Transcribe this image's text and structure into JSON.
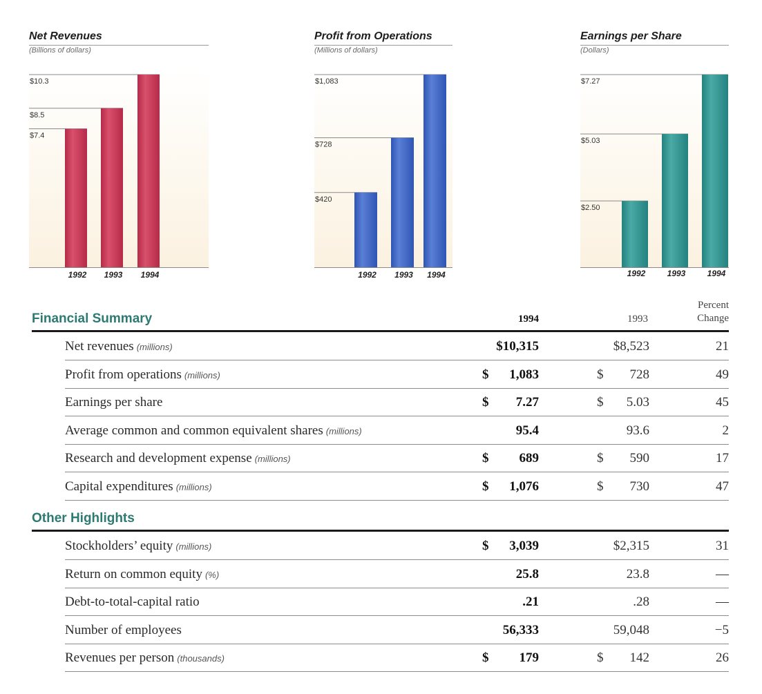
{
  "chart_data": [
    {
      "type": "bar",
      "title": "Net Revenues",
      "subtitle": "(Billions of dollars)",
      "categories": [
        "1992",
        "1993",
        "1994"
      ],
      "values": [
        7.4,
        8.5,
        10.3
      ],
      "value_labels": [
        "$7.4",
        "$8.5",
        "$10.3"
      ],
      "color": "#b52a48",
      "color_light": "#d9506c"
    },
    {
      "type": "bar",
      "title": "Profit from Operations",
      "subtitle": "(Millions of dollars)",
      "categories": [
        "1992",
        "1993",
        "1994"
      ],
      "values": [
        420,
        728,
        1083
      ],
      "value_labels": [
        "$420",
        "$728",
        "$1,083"
      ],
      "color": "#2f55b5",
      "color_light": "#5a7fd6"
    },
    {
      "type": "bar",
      "title": "Earnings per Share",
      "subtitle": "(Dollars)",
      "categories": [
        "1992",
        "1993",
        "1994"
      ],
      "values": [
        2.5,
        5.03,
        7.27
      ],
      "value_labels": [
        "$2.50",
        "$5.03",
        "$7.27"
      ],
      "color": "#23827f",
      "color_light": "#4aaaa6"
    }
  ],
  "financial_summary": {
    "title": "Financial Summary",
    "col_1994": "1994",
    "col_1993": "1993",
    "col_pct_line1": "Percent",
    "col_pct_line2": "Change",
    "rows": [
      {
        "label": "Net revenues",
        "unit": "(millions)",
        "d94": "",
        "v94": "$10,315",
        "d93": "",
        "v93": "$8,523",
        "pct": "21"
      },
      {
        "label": "Profit from operations",
        "unit": "(millions)",
        "d94": "$",
        "v94": "1,083",
        "d93": "$",
        "v93": "728",
        "pct": "49"
      },
      {
        "label": "Earnings per share",
        "unit": "",
        "d94": "$",
        "v94": "7.27",
        "d93": "$",
        "v93": "5.03",
        "pct": "45"
      },
      {
        "label": "Average common and common equivalent shares",
        "unit": "(millions)",
        "d94": "",
        "v94": "95.4",
        "d93": "",
        "v93": "93.6",
        "pct": "2"
      },
      {
        "label": "Research and development expense",
        "unit": "(millions)",
        "d94": "$",
        "v94": "689",
        "d93": "$",
        "v93": "590",
        "pct": "17"
      },
      {
        "label": "Capital expenditures",
        "unit": "(millions)",
        "d94": "$",
        "v94": "1,076",
        "d93": "$",
        "v93": "730",
        "pct": "47"
      }
    ]
  },
  "other_highlights": {
    "title": "Other Highlights",
    "rows": [
      {
        "label": "Stockholders’ equity",
        "unit": "(millions)",
        "d94": "$",
        "v94": "3,039",
        "d93": "",
        "v93": "$2,315",
        "pct": "31"
      },
      {
        "label": "Return on common equity",
        "unit": "(%)",
        "d94": "",
        "v94": "25.8",
        "d93": "",
        "v93": "23.8",
        "pct": "—"
      },
      {
        "label": "Debt-to-total-capital ratio",
        "unit": "",
        "d94": "",
        "v94": ".21",
        "d93": "",
        "v93": ".28",
        "pct": "—"
      },
      {
        "label": "Number of employees",
        "unit": "",
        "d94": "",
        "v94": "56,333",
        "d93": "",
        "v93": "59,048",
        "pct": "−5"
      },
      {
        "label": "Revenues per person",
        "unit": "(thousands)",
        "d94": "$",
        "v94": "179",
        "d93": "$",
        "v93": "142",
        "pct": "26"
      }
    ]
  }
}
